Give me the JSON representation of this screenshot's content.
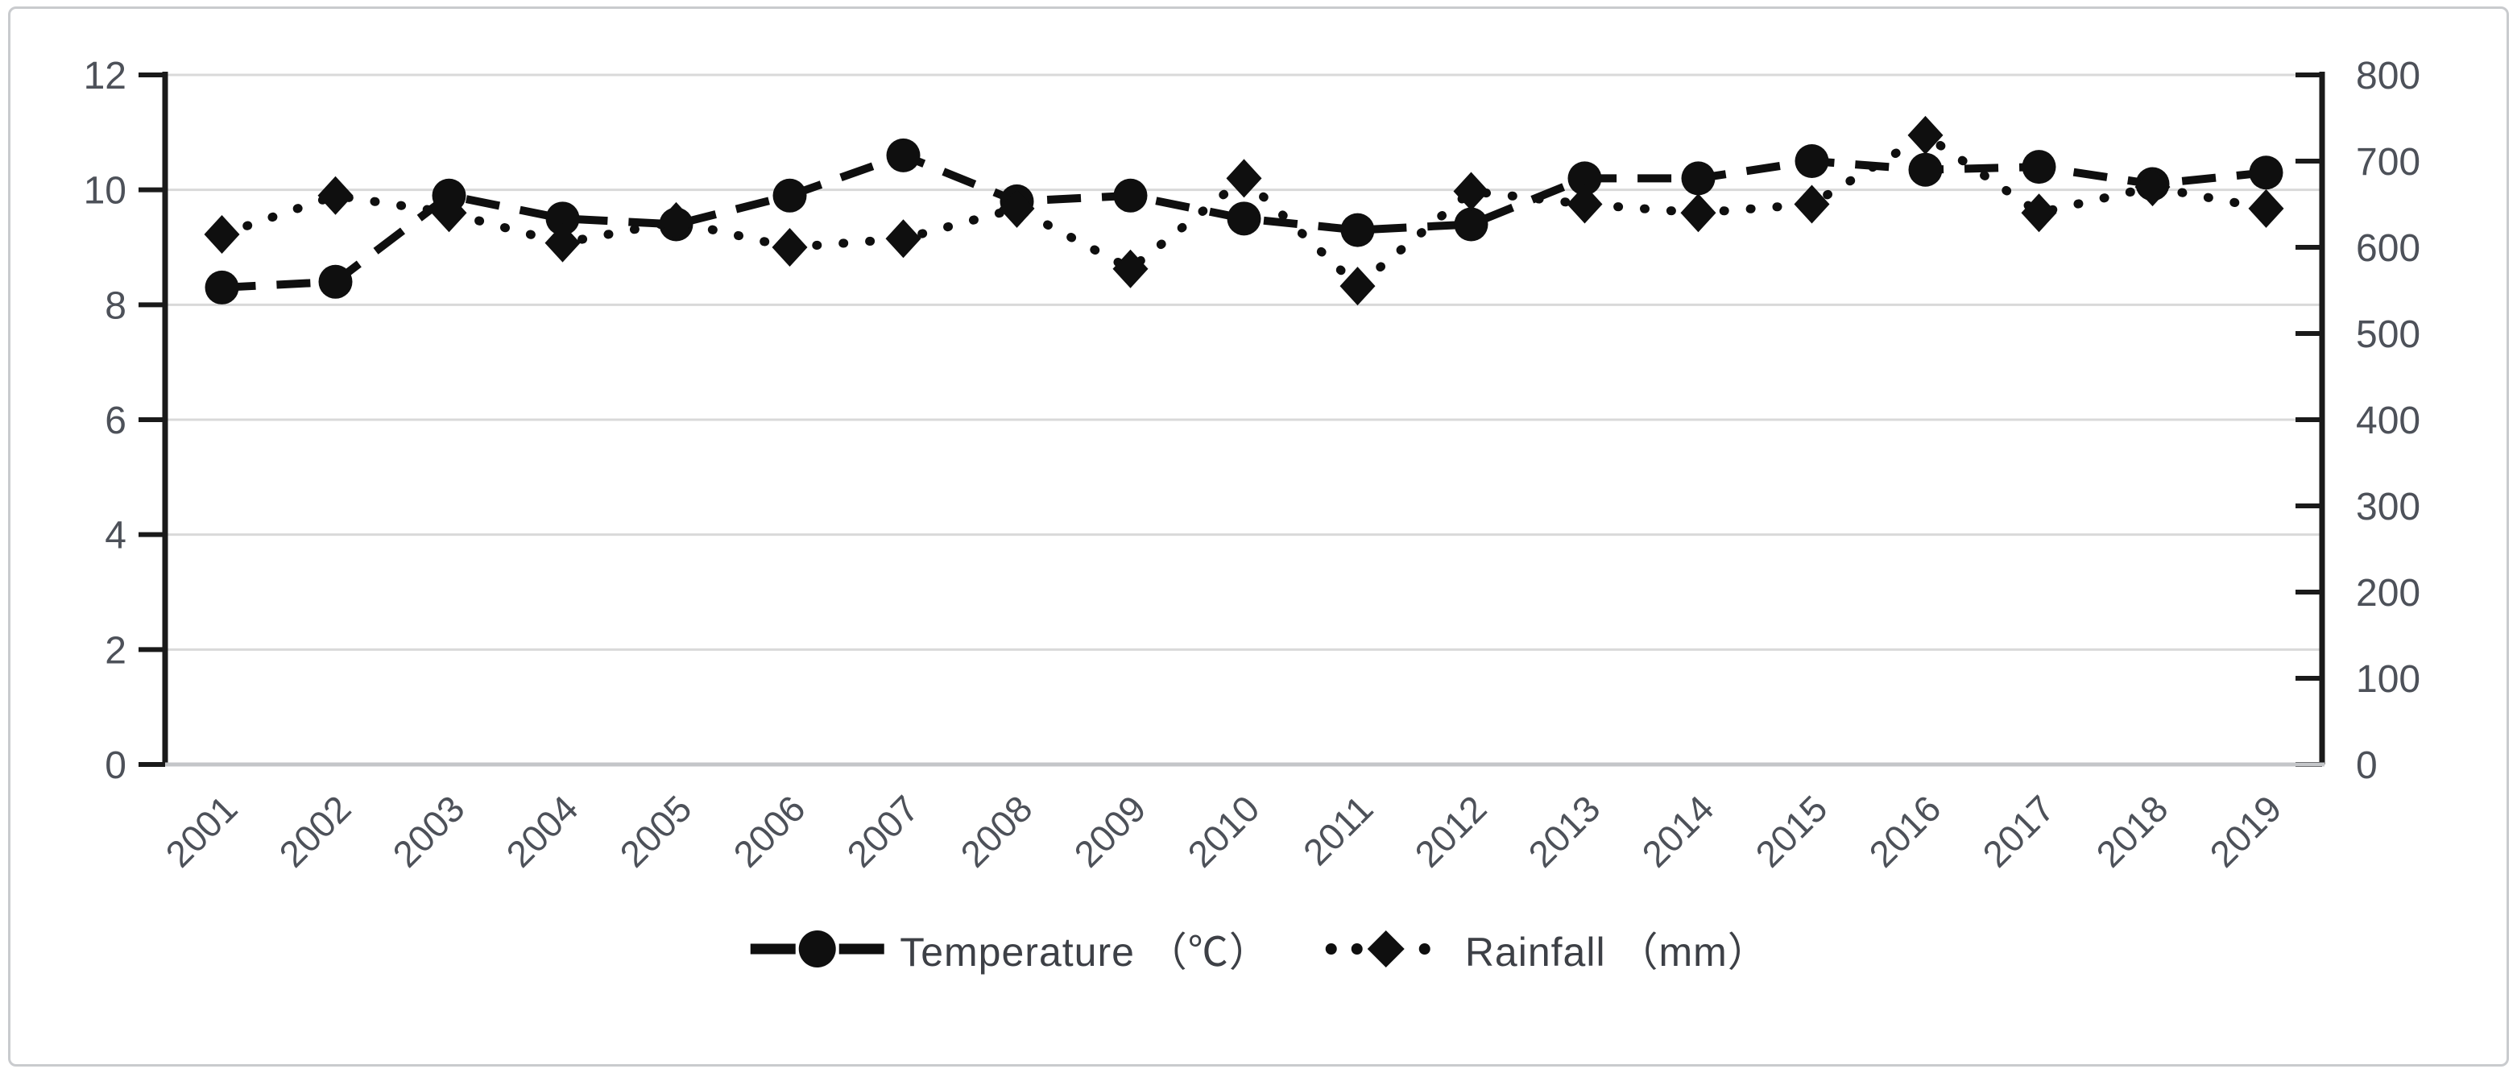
{
  "chart_data": {
    "type": "line",
    "title": "",
    "categories": [
      2001,
      2002,
      2003,
      2004,
      2005,
      2006,
      2007,
      2008,
      2009,
      2010,
      2011,
      2012,
      2013,
      2014,
      2015,
      2016,
      2017,
      2018,
      2019
    ],
    "series": [
      {
        "name": "Temperature （℃）",
        "axis": "left",
        "marker": "circle",
        "line_style": "dashed",
        "values": [
          8.3,
          8.4,
          9.9,
          9.5,
          9.4,
          9.9,
          10.6,
          9.8,
          9.9,
          9.5,
          9.3,
          9.4,
          10.2,
          10.2,
          10.5,
          10.35,
          10.4,
          10.1,
          10.3
        ]
      },
      {
        "name": "Rainfall （mm）",
        "axis": "right",
        "marker": "diamond",
        "line_style": "dotted",
        "values": [
          615,
          660,
          640,
          605,
          630,
          600,
          610,
          645,
          575,
          680,
          555,
          665,
          650,
          640,
          650,
          730,
          640,
          670,
          645
        ]
      }
    ],
    "left_axis": {
      "min": 0,
      "max": 12,
      "ticks": [
        0,
        2,
        4,
        6,
        8,
        10,
        12
      ]
    },
    "right_axis": {
      "min": 0,
      "max": 800,
      "ticks": [
        0,
        100,
        200,
        300,
        400,
        500,
        600,
        700,
        800
      ]
    },
    "grid": true,
    "legend_position": "bottom",
    "colors": {
      "series": "#0f0f0f",
      "gridline": "#d9d9d9",
      "axis_line": "#1a1a1a",
      "bottom_line": "#c4c6c9",
      "tick_text": "#4d5159"
    }
  },
  "legend": {
    "temperature_label": "Temperature （℃）",
    "rainfall_label": "Rainfall （mm）"
  }
}
